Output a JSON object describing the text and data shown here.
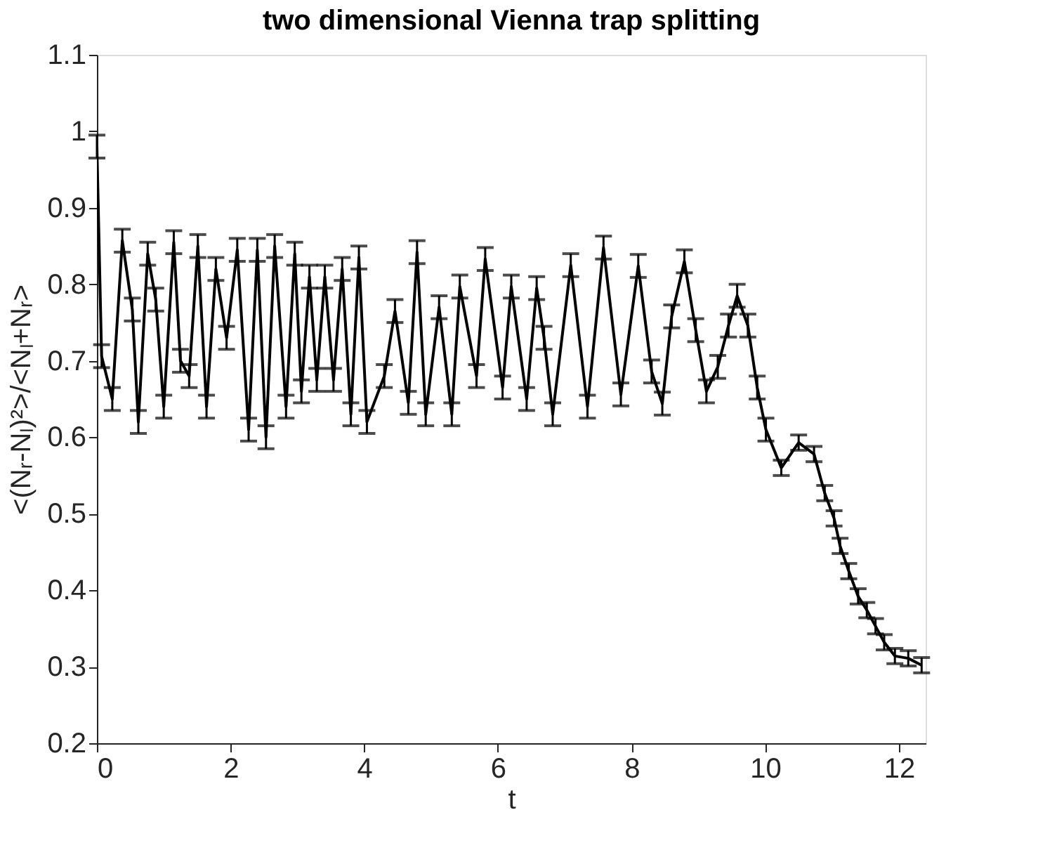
{
  "chart_data": {
    "type": "line",
    "title": "two dimensional Vienna trap splitting",
    "xlabel": "t",
    "ylabel": "<(Nᵣ-Nₗ)²>/<Nₗ+Nᵣ>",
    "x": [
      0,
      0.07,
      0.23,
      0.38,
      0.53,
      0.62,
      0.76,
      0.88,
      1.0,
      1.15,
      1.25,
      1.38,
      1.51,
      1.64,
      1.78,
      1.94,
      2.1,
      2.27,
      2.4,
      2.53,
      2.66,
      2.83,
      2.96,
      3.06,
      3.18,
      3.29,
      3.41,
      3.54,
      3.67,
      3.8,
      3.92,
      4.04,
      4.3,
      4.46,
      4.66,
      4.79,
      4.92,
      5.12,
      5.31,
      5.43,
      5.68,
      5.81,
      6.07,
      6.2,
      6.43,
      6.58,
      6.69,
      6.82,
      7.09,
      7.34,
      7.58,
      7.84,
      8.1,
      8.3,
      8.46,
      8.6,
      8.79,
      8.96,
      9.12,
      9.29,
      9.45,
      9.58,
      9.74,
      9.88,
      10.01,
      10.24,
      10.5,
      10.73,
      10.89,
      11.03,
      11.12,
      11.25,
      11.39,
      11.52,
      11.65,
      11.78,
      11.94,
      12.14,
      12.34
    ],
    "series": [
      {
        "color": "#000000",
        "values": [
          0.98,
          0.706,
          0.65,
          0.857,
          0.767,
          0.62,
          0.84,
          0.78,
          0.64,
          0.855,
          0.7,
          0.68,
          0.85,
          0.64,
          0.82,
          0.73,
          0.845,
          0.61,
          0.845,
          0.6,
          0.85,
          0.64,
          0.84,
          0.66,
          0.81,
          0.675,
          0.81,
          0.675,
          0.82,
          0.63,
          0.835,
          0.62,
          0.68,
          0.765,
          0.645,
          0.842,
          0.63,
          0.77,
          0.63,
          0.797,
          0.68,
          0.833,
          0.665,
          0.797,
          0.65,
          0.795,
          0.73,
          0.63,
          0.825,
          0.64,
          0.848,
          0.656,
          0.824,
          0.686,
          0.644,
          0.758,
          0.83,
          0.74,
          0.66,
          0.692,
          0.746,
          0.785,
          0.746,
          0.665,
          0.61,
          0.56,
          0.593,
          0.578,
          0.527,
          0.494,
          0.458,
          0.425,
          0.392,
          0.374,
          0.353,
          0.332,
          0.314,
          0.311,
          0.302
        ],
        "errors": [
          0.015,
          0.015,
          0.015,
          0.015,
          0.015,
          0.015,
          0.015,
          0.015,
          0.015,
          0.015,
          0.015,
          0.015,
          0.015,
          0.015,
          0.015,
          0.015,
          0.015,
          0.015,
          0.015,
          0.015,
          0.015,
          0.015,
          0.015,
          0.015,
          0.015,
          0.015,
          0.015,
          0.015,
          0.015,
          0.015,
          0.015,
          0.015,
          0.015,
          0.015,
          0.015,
          0.015,
          0.015,
          0.015,
          0.015,
          0.015,
          0.015,
          0.015,
          0.015,
          0.015,
          0.015,
          0.015,
          0.015,
          0.015,
          0.015,
          0.015,
          0.015,
          0.015,
          0.015,
          0.015,
          0.015,
          0.015,
          0.015,
          0.015,
          0.015,
          0.015,
          0.015,
          0.015,
          0.015,
          0.015,
          0.015,
          0.01,
          0.01,
          0.01,
          0.01,
          0.01,
          0.01,
          0.01,
          0.01,
          0.01,
          0.01,
          0.01,
          0.01,
          0.01,
          0.01
        ]
      }
    ],
    "xlim": [
      0,
      12.4
    ],
    "xticks": [
      0,
      2,
      4,
      6,
      8,
      10,
      12
    ],
    "ylim": [
      0.2,
      1.1
    ],
    "yticks": [
      0.2,
      0.3,
      0.4,
      0.5,
      0.6,
      0.7,
      0.8,
      0.9,
      1,
      1.1
    ],
    "grid": false,
    "marker": "none",
    "line_style": "solid"
  }
}
